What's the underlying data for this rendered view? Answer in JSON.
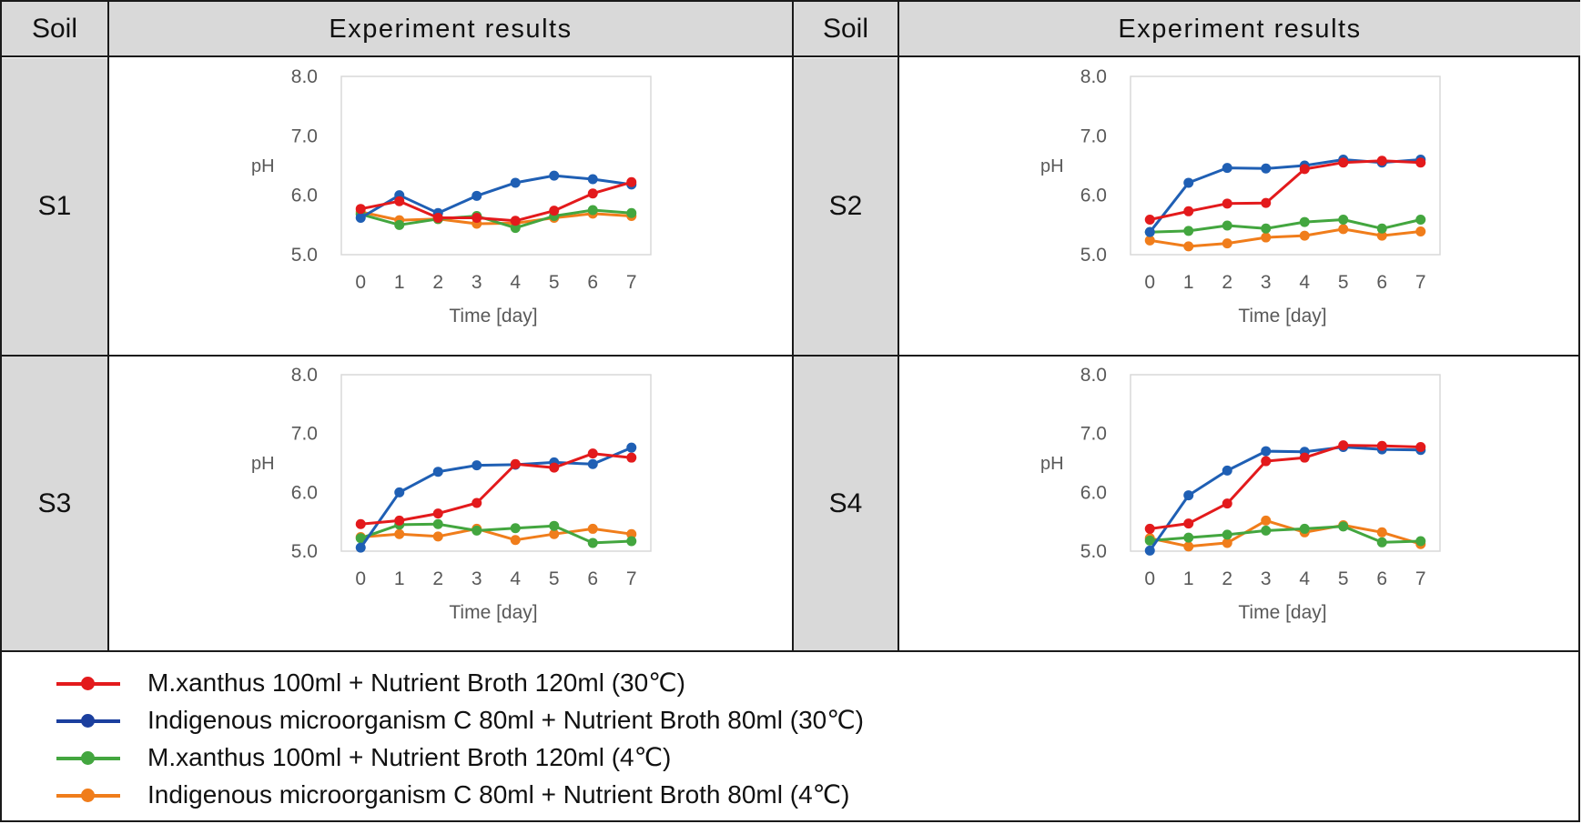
{
  "header": {
    "soil_left": "Soil",
    "results_left": "Experiment results",
    "soil_right": "Soil",
    "results_right": "Experiment results"
  },
  "soils": [
    "S1",
    "S2",
    "S3",
    "S4"
  ],
  "legend": [
    {
      "label": "M.xanthus 100ml + Nutrient Broth 120ml (30℃)",
      "color": "#e31a1c"
    },
    {
      "label": "Indigenous microorganism C 80ml + Nutrient Broth 80ml (30℃)",
      "color": "#1f5fb4"
    },
    {
      "label": "M.xanthus 100ml + Nutrient Broth 120ml (4℃)",
      "color": "#43a63f"
    },
    {
      "label": "Indigenous microorganism C 80ml + Nutrient Broth 80ml (4℃)",
      "color": "#f07d1b"
    }
  ],
  "chart_data": [
    {
      "type": "line",
      "soil": "S1",
      "categories": [
        "0",
        "1",
        "2",
        "3",
        "4",
        "5",
        "6",
        "7"
      ],
      "xlabel": "Time [day]",
      "ylabel": "pH",
      "ylim": [
        5.0,
        8.0
      ],
      "yticks": [
        "5.0",
        "6.0",
        "7.0",
        "8.0"
      ],
      "series": [
        {
          "name": "M.xanthus 100ml + Nutrient Broth 120ml (30℃)",
          "color": "#e31a1c",
          "values": [
            5.77,
            5.9,
            5.62,
            5.62,
            5.57,
            5.74,
            6.03,
            6.22
          ]
        },
        {
          "name": "Indigenous microorganism C 80ml + Nutrient Broth 80ml (30℃)",
          "color": "#1f5fb4",
          "values": [
            5.62,
            6.0,
            5.7,
            5.99,
            6.21,
            6.33,
            6.27,
            6.18
          ]
        },
        {
          "name": "M.xanthus 100ml + Nutrient Broth 120ml (4℃)",
          "color": "#43a63f",
          "values": [
            5.68,
            5.5,
            5.6,
            5.65,
            5.45,
            5.65,
            5.75,
            5.7
          ]
        },
        {
          "name": "Indigenous microorganism C 80ml + Nutrient Broth 80ml (4℃)",
          "color": "#f07d1b",
          "values": [
            5.72,
            5.58,
            5.6,
            5.52,
            5.53,
            5.62,
            5.69,
            5.65
          ]
        }
      ]
    },
    {
      "type": "line",
      "soil": "S2",
      "categories": [
        "0",
        "1",
        "2",
        "3",
        "4",
        "5",
        "6",
        "7"
      ],
      "xlabel": "Time [day]",
      "ylabel": "pH",
      "ylim": [
        5.0,
        8.0
      ],
      "yticks": [
        "5.0",
        "6.0",
        "7.0",
        "8.0"
      ],
      "series": [
        {
          "name": "M.xanthus 100ml + Nutrient Broth 120ml (30℃)",
          "color": "#e31a1c",
          "values": [
            5.59,
            5.73,
            5.86,
            5.87,
            6.44,
            6.55,
            6.58,
            6.55
          ]
        },
        {
          "name": "Indigenous microorganism C 80ml + Nutrient Broth 80ml (30℃)",
          "color": "#1f5fb4",
          "values": [
            5.38,
            6.21,
            6.46,
            6.45,
            6.5,
            6.6,
            6.55,
            6.6
          ]
        },
        {
          "name": "M.xanthus 100ml + Nutrient Broth 120ml (4℃)",
          "color": "#43a63f",
          "values": [
            5.38,
            5.4,
            5.49,
            5.44,
            5.55,
            5.59,
            5.44,
            5.59
          ]
        },
        {
          "name": "Indigenous microorganism C 80ml + Nutrient Broth 80ml (4℃)",
          "color": "#f07d1b",
          "values": [
            5.24,
            5.14,
            5.19,
            5.29,
            5.32,
            5.43,
            5.32,
            5.39
          ]
        }
      ]
    },
    {
      "type": "line",
      "soil": "S3",
      "categories": [
        "0",
        "1",
        "2",
        "3",
        "4",
        "5",
        "6",
        "7"
      ],
      "xlabel": "Time [day]",
      "ylabel": "pH",
      "ylim": [
        5.0,
        8.0
      ],
      "yticks": [
        "5.0",
        "6.0",
        "7.0",
        "8.0"
      ],
      "series": [
        {
          "name": "M.xanthus 100ml + Nutrient Broth 120ml (30℃)",
          "color": "#e31a1c",
          "values": [
            5.46,
            5.52,
            5.64,
            5.82,
            6.48,
            6.42,
            6.66,
            6.59
          ]
        },
        {
          "name": "Indigenous microorganism C 80ml + Nutrient Broth 80ml (30℃)",
          "color": "#1f5fb4",
          "values": [
            5.06,
            6.0,
            6.35,
            6.46,
            6.47,
            6.51,
            6.48,
            6.76
          ]
        },
        {
          "name": "M.xanthus 100ml + Nutrient Broth 120ml (4℃)",
          "color": "#43a63f",
          "values": [
            5.22,
            5.45,
            5.46,
            5.35,
            5.39,
            5.43,
            5.14,
            5.17
          ]
        },
        {
          "name": "Indigenous microorganism C 80ml + Nutrient Broth 80ml (4℃)",
          "color": "#f07d1b",
          "values": [
            5.24,
            5.29,
            5.25,
            5.38,
            5.19,
            5.29,
            5.38,
            5.29
          ]
        }
      ]
    },
    {
      "type": "line",
      "soil": "S4",
      "categories": [
        "0",
        "1",
        "2",
        "3",
        "4",
        "5",
        "6",
        "7"
      ],
      "xlabel": "Time [day]",
      "ylabel": "pH",
      "ylim": [
        5.0,
        8.0
      ],
      "yticks": [
        "5.0",
        "6.0",
        "7.0",
        "8.0"
      ],
      "series": [
        {
          "name": "M.xanthus 100ml + Nutrient Broth 120ml (30℃)",
          "color": "#e31a1c",
          "values": [
            5.38,
            5.47,
            5.81,
            6.53,
            6.59,
            6.8,
            6.79,
            6.77
          ]
        },
        {
          "name": "Indigenous microorganism C 80ml + Nutrient Broth 80ml (30℃)",
          "color": "#1f5fb4",
          "values": [
            5.01,
            5.95,
            6.37,
            6.7,
            6.69,
            6.77,
            6.73,
            6.72
          ]
        },
        {
          "name": "M.xanthus 100ml + Nutrient Broth 120ml (4℃)",
          "color": "#43a63f",
          "values": [
            5.18,
            5.23,
            5.28,
            5.35,
            5.38,
            5.42,
            5.15,
            5.17
          ]
        },
        {
          "name": "Indigenous microorganism C 80ml + Nutrient Broth 80ml (4℃)",
          "color": "#f07d1b",
          "values": [
            5.22,
            5.08,
            5.14,
            5.52,
            5.32,
            5.44,
            5.32,
            5.12
          ]
        }
      ]
    }
  ]
}
